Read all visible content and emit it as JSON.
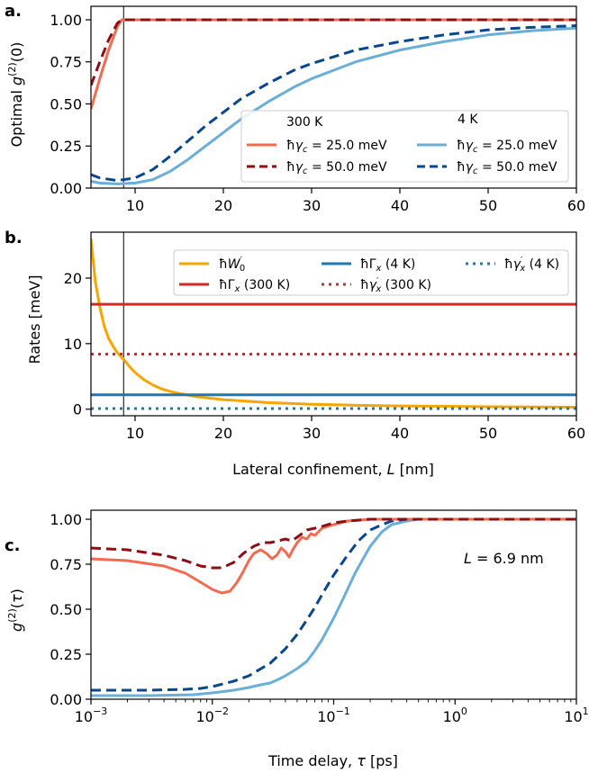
{
  "chart_data": [
    {
      "type": "line",
      "panel_label": "a.",
      "ylabel": "Optimal g(2)(0)",
      "xlabel": "",
      "xlim": [
        5,
        60
      ],
      "ylim": [
        0,
        1.08
      ],
      "x_ticks": [
        "10",
        "20",
        "30",
        "40",
        "50",
        "60"
      ],
      "y_ticks": [
        "0.00",
        "0.25",
        "0.50",
        "0.75",
        "1.00"
      ],
      "vline_x": 8.7,
      "legend": {
        "loc": "lower-right",
        "col1_title": "300 K",
        "col2_title": "4 K"
      },
      "series": [
        {
          "name": "ħγc = 25.0 meV",
          "group": "300 K",
          "color": "#f26b50",
          "style": "solid",
          "x": [
            5,
            6,
            7,
            8,
            8.5,
            9,
            12,
            20,
            30,
            40,
            50,
            60
          ],
          "y": [
            0.47,
            0.65,
            0.82,
            0.96,
            1.0,
            1.0,
            1.0,
            1.0,
            1.0,
            1.0,
            1.0,
            1.0
          ]
        },
        {
          "name": "ħγc = 50.0 meV",
          "group": "300 K",
          "color": "#8b0f14",
          "style": "dashed",
          "x": [
            5,
            6,
            7,
            8,
            8.5,
            9,
            12,
            20,
            30,
            40,
            50,
            60
          ],
          "y": [
            0.61,
            0.75,
            0.88,
            0.98,
            1.0,
            1.0,
            1.0,
            1.0,
            1.0,
            1.0,
            1.0,
            1.0
          ]
        },
        {
          "name": "ħγc = 25.0 meV",
          "group": "4 K",
          "color": "#6baed6",
          "style": "solid",
          "x": [
            5,
            6,
            8,
            10,
            12,
            14,
            16,
            18,
            20,
            22,
            25,
            28,
            30,
            35,
            40,
            45,
            50,
            55,
            60
          ],
          "y": [
            0.04,
            0.03,
            0.025,
            0.03,
            0.05,
            0.1,
            0.17,
            0.25,
            0.33,
            0.41,
            0.51,
            0.6,
            0.65,
            0.75,
            0.82,
            0.87,
            0.91,
            0.935,
            0.95
          ]
        },
        {
          "name": "ħγc = 50.0 meV",
          "group": "4 K",
          "color": "#08478c",
          "style": "dashed",
          "x": [
            5,
            6,
            8,
            10,
            12,
            14,
            16,
            18,
            20,
            22,
            25,
            28,
            30,
            35,
            40,
            45,
            50,
            55,
            60
          ],
          "y": [
            0.08,
            0.06,
            0.045,
            0.06,
            0.11,
            0.19,
            0.28,
            0.37,
            0.45,
            0.53,
            0.62,
            0.7,
            0.74,
            0.82,
            0.87,
            0.91,
            0.94,
            0.955,
            0.965
          ]
        }
      ]
    },
    {
      "type": "line",
      "panel_label": "b.",
      "ylabel": "Rates [meV]",
      "xlabel": "Lateral confinement, L [nm]",
      "xlim": [
        5,
        60
      ],
      "ylim": [
        -1,
        27
      ],
      "x_ticks": [
        "10",
        "20",
        "30",
        "40",
        "50",
        "60"
      ],
      "y_ticks": [
        "0",
        "10",
        "20"
      ],
      "vline_x": 8.7,
      "legend": {
        "loc": "top-right"
      },
      "series": [
        {
          "name": "ħW′0",
          "color": "#f7a500",
          "style": "solid",
          "x": [
            5,
            5.5,
            6,
            6.5,
            7,
            7.5,
            8,
            8.7,
            9.5,
            10,
            11,
            12,
            13,
            14,
            15,
            17,
            20,
            25,
            30,
            35,
            40,
            50,
            60
          ],
          "y": [
            26,
            19.4,
            15.6,
            12.7,
            10.8,
            9.6,
            8.6,
            7.6,
            6.3,
            5.6,
            4.5,
            3.7,
            3.1,
            2.7,
            2.4,
            1.9,
            1.45,
            1.0,
            0.75,
            0.6,
            0.5,
            0.38,
            0.3
          ]
        },
        {
          "name": "ħΓx (4 K)",
          "color": "#1f77b4",
          "style": "solid",
          "x": [
            5,
            60
          ],
          "y": [
            2.2,
            2.2
          ]
        },
        {
          "name": "ħγ′x (4 K)",
          "color": "#1f77b4",
          "style": "dotted",
          "x": [
            5,
            60
          ],
          "y": [
            0.1,
            0.1
          ]
        },
        {
          "name": "ħΓx (300 K)",
          "color": "#d62728",
          "style": "solid",
          "x": [
            5,
            60
          ],
          "y": [
            16,
            16
          ]
        },
        {
          "name": "ħγ′x (300 K)",
          "color": "#d62728",
          "style": "dotted",
          "x": [
            5,
            60
          ],
          "y": [
            8.4,
            8.4
          ]
        }
      ]
    },
    {
      "type": "line",
      "panel_label": "c.",
      "ylabel": "g(2)(τ)",
      "xlabel": "Time delay, τ [ps]",
      "xscale": "log",
      "xlim": [
        0.001,
        10
      ],
      "ylim": [
        0,
        1.05
      ],
      "x_ticks": [
        "10-3",
        "10-2",
        "10-1",
        "100",
        "101"
      ],
      "y_ticks": [
        "0.00",
        "0.25",
        "0.50",
        "0.75",
        "1.00"
      ],
      "annotation": "L = 6.9 nm",
      "series": [
        {
          "name": "ħγc = 25.0 meV (300 K)",
          "color": "#f26b50",
          "style": "solid",
          "x": [
            0.001,
            0.002,
            0.004,
            0.006,
            0.008,
            0.01,
            0.012,
            0.014,
            0.016,
            0.018,
            0.02,
            0.022,
            0.025,
            0.028,
            0.031,
            0.034,
            0.037,
            0.04,
            0.043,
            0.046,
            0.05,
            0.055,
            0.06,
            0.065,
            0.07,
            0.08,
            0.1,
            0.13,
            0.2,
            0.3,
            1,
            10
          ],
          "y": [
            0.78,
            0.77,
            0.74,
            0.7,
            0.65,
            0.61,
            0.59,
            0.6,
            0.65,
            0.71,
            0.77,
            0.81,
            0.83,
            0.81,
            0.78,
            0.8,
            0.84,
            0.82,
            0.79,
            0.83,
            0.87,
            0.9,
            0.89,
            0.92,
            0.91,
            0.95,
            0.97,
            0.99,
            1.0,
            1.0,
            1.0,
            1.0
          ]
        },
        {
          "name": "ħγc = 50.0 meV (300 K)",
          "color": "#8b0f14",
          "style": "dashed",
          "x": [
            0.001,
            0.002,
            0.004,
            0.006,
            0.008,
            0.01,
            0.012,
            0.015,
            0.018,
            0.022,
            0.026,
            0.03,
            0.035,
            0.04,
            0.045,
            0.05,
            0.06,
            0.07,
            0.08,
            0.1,
            0.13,
            0.2,
            0.3,
            1,
            10
          ],
          "y": [
            0.84,
            0.83,
            0.8,
            0.77,
            0.74,
            0.73,
            0.73,
            0.76,
            0.81,
            0.85,
            0.87,
            0.87,
            0.88,
            0.89,
            0.88,
            0.9,
            0.94,
            0.95,
            0.96,
            0.98,
            0.99,
            1.0,
            1.0,
            1.0,
            1.0
          ]
        },
        {
          "name": "ħγc = 25.0 meV (4 K)",
          "color": "#6baed6",
          "style": "solid",
          "x": [
            0.001,
            0.003,
            0.007,
            0.01,
            0.015,
            0.02,
            0.025,
            0.03,
            0.035,
            0.04,
            0.05,
            0.06,
            0.07,
            0.08,
            0.1,
            0.12,
            0.15,
            0.2,
            0.25,
            0.3,
            0.4,
            0.5,
            0.6,
            1,
            10
          ],
          "y": [
            0.02,
            0.02,
            0.025,
            0.035,
            0.05,
            0.065,
            0.08,
            0.09,
            0.11,
            0.13,
            0.17,
            0.21,
            0.27,
            0.33,
            0.45,
            0.56,
            0.7,
            0.85,
            0.93,
            0.97,
            0.99,
            1.0,
            1.0,
            1.0,
            1.0
          ]
        },
        {
          "name": "ħγc = 50.0 meV (4 K)",
          "color": "#08478c",
          "style": "dashed",
          "x": [
            0.001,
            0.003,
            0.006,
            0.008,
            0.01,
            0.015,
            0.02,
            0.03,
            0.04,
            0.05,
            0.06,
            0.07,
            0.08,
            0.1,
            0.13,
            0.16,
            0.2,
            0.25,
            0.3,
            0.4,
            0.5,
            1,
            10
          ],
          "y": [
            0.05,
            0.05,
            0.055,
            0.06,
            0.07,
            0.1,
            0.13,
            0.2,
            0.28,
            0.36,
            0.44,
            0.51,
            0.58,
            0.69,
            0.8,
            0.88,
            0.94,
            0.97,
            0.99,
            1.0,
            1.0,
            1.0,
            1.0
          ]
        }
      ]
    }
  ]
}
